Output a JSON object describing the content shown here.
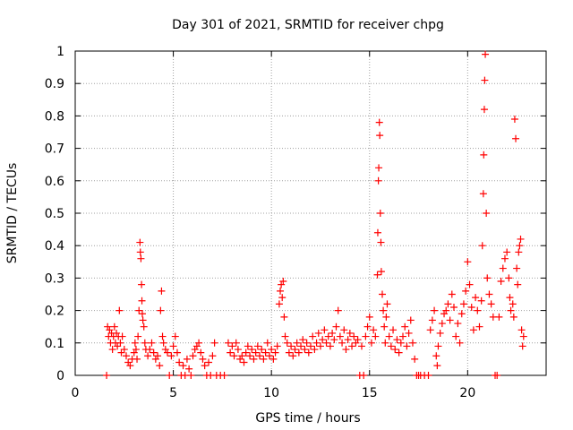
{
  "chart_data": {
    "type": "scatter",
    "title": "Day 301 of 2021, SRMTID for receiver chpg",
    "xlabel": "GPS time / hours",
    "ylabel": "SRMTID / TECUs",
    "xlim": [
      0,
      24
    ],
    "ylim": [
      0,
      1
    ],
    "xticks": [
      0,
      5,
      10,
      15,
      20
    ],
    "xtick_labels": [
      "0",
      "5",
      "10",
      "15",
      "20"
    ],
    "yticks": [
      0,
      0.1,
      0.2,
      0.3,
      0.4,
      0.5,
      0.6,
      0.7,
      0.8,
      0.9,
      1
    ],
    "ytick_labels": [
      "0",
      "0.1",
      "0.2",
      "0.3",
      "0.4",
      "0.5",
      "0.6",
      "0.7",
      "0.8",
      "0.9",
      "1"
    ],
    "grid": true,
    "marker": "+",
    "series": [
      {
        "name": "SRMTID",
        "color": "#ff0000",
        "points": [
          [
            1.6,
            0.0
          ],
          [
            1.65,
            0.15
          ],
          [
            1.7,
            0.12
          ],
          [
            1.75,
            0.14
          ],
          [
            1.8,
            0.1
          ],
          [
            1.85,
            0.13
          ],
          [
            1.9,
            0.08
          ],
          [
            1.95,
            0.12
          ],
          [
            2.0,
            0.15
          ],
          [
            2.05,
            0.1
          ],
          [
            2.1,
            0.13
          ],
          [
            2.15,
            0.09
          ],
          [
            2.2,
            0.12
          ],
          [
            2.25,
            0.2
          ],
          [
            2.3,
            0.1
          ],
          [
            2.35,
            0.07
          ],
          [
            2.4,
            0.12
          ],
          [
            2.5,
            0.08
          ],
          [
            2.6,
            0.06
          ],
          [
            2.7,
            0.04
          ],
          [
            2.8,
            0.03
          ],
          [
            2.9,
            0.05
          ],
          [
            3.0,
            0.07
          ],
          [
            3.05,
            0.1
          ],
          [
            3.1,
            0.08
          ],
          [
            3.15,
            0.05
          ],
          [
            3.2,
            0.12
          ],
          [
            3.25,
            0.2
          ],
          [
            3.3,
            0.41
          ],
          [
            3.32,
            0.38
          ],
          [
            3.35,
            0.36
          ],
          [
            3.38,
            0.28
          ],
          [
            3.4,
            0.23
          ],
          [
            3.42,
            0.19
          ],
          [
            3.45,
            0.17
          ],
          [
            3.5,
            0.15
          ],
          [
            3.55,
            0.1
          ],
          [
            3.6,
            0.08
          ],
          [
            3.7,
            0.06
          ],
          [
            3.8,
            0.08
          ],
          [
            3.9,
            0.1
          ],
          [
            4.0,
            0.07
          ],
          [
            4.1,
            0.05
          ],
          [
            4.2,
            0.06
          ],
          [
            4.3,
            0.03
          ],
          [
            4.35,
            0.2
          ],
          [
            4.4,
            0.26
          ],
          [
            4.45,
            0.12
          ],
          [
            4.5,
            0.1
          ],
          [
            4.6,
            0.08
          ],
          [
            4.7,
            0.07
          ],
          [
            4.8,
            0.0
          ],
          [
            4.9,
            0.06
          ],
          [
            5.0,
            0.09
          ],
          [
            5.1,
            0.12
          ],
          [
            5.2,
            0.07
          ],
          [
            5.3,
            0.04
          ],
          [
            5.4,
            0.0
          ],
          [
            5.5,
            0.03
          ],
          [
            5.6,
            0.0
          ],
          [
            5.7,
            0.05
          ],
          [
            5.8,
            0.02
          ],
          [
            5.9,
            0.0
          ],
          [
            6.0,
            0.06
          ],
          [
            6.1,
            0.08
          ],
          [
            6.2,
            0.09
          ],
          [
            6.3,
            0.1
          ],
          [
            6.4,
            0.07
          ],
          [
            6.5,
            0.05
          ],
          [
            6.6,
            0.03
          ],
          [
            6.7,
            0.0
          ],
          [
            6.8,
            0.04
          ],
          [
            6.9,
            0.0
          ],
          [
            7.0,
            0.06
          ],
          [
            7.1,
            0.1
          ],
          [
            7.2,
            0.0
          ],
          [
            7.4,
            0.0
          ],
          [
            7.6,
            0.0
          ],
          [
            7.8,
            0.1
          ],
          [
            7.9,
            0.07
          ],
          [
            8.0,
            0.09
          ],
          [
            8.1,
            0.06
          ],
          [
            8.2,
            0.1
          ],
          [
            8.3,
            0.08
          ],
          [
            8.4,
            0.05
          ],
          [
            8.5,
            0.06
          ],
          [
            8.6,
            0.04
          ],
          [
            8.7,
            0.07
          ],
          [
            8.8,
            0.09
          ],
          [
            8.9,
            0.06
          ],
          [
            9.0,
            0.08
          ],
          [
            9.1,
            0.05
          ],
          [
            9.2,
            0.07
          ],
          [
            9.3,
            0.09
          ],
          [
            9.4,
            0.06
          ],
          [
            9.5,
            0.08
          ],
          [
            9.6,
            0.05
          ],
          [
            9.7,
            0.07
          ],
          [
            9.8,
            0.1
          ],
          [
            9.9,
            0.06
          ],
          [
            10.0,
            0.08
          ],
          [
            10.1,
            0.05
          ],
          [
            10.2,
            0.07
          ],
          [
            10.3,
            0.09
          ],
          [
            10.4,
            0.22
          ],
          [
            10.45,
            0.26
          ],
          [
            10.5,
            0.28
          ],
          [
            10.55,
            0.24
          ],
          [
            10.6,
            0.29
          ],
          [
            10.65,
            0.18
          ],
          [
            10.7,
            0.12
          ],
          [
            10.8,
            0.1
          ],
          [
            10.9,
            0.07
          ],
          [
            11.0,
            0.09
          ],
          [
            11.1,
            0.06
          ],
          [
            11.2,
            0.08
          ],
          [
            11.3,
            0.1
          ],
          [
            11.4,
            0.07
          ],
          [
            11.5,
            0.09
          ],
          [
            11.6,
            0.11
          ],
          [
            11.7,
            0.08
          ],
          [
            11.8,
            0.1
          ],
          [
            11.9,
            0.07
          ],
          [
            12.0,
            0.09
          ],
          [
            12.1,
            0.12
          ],
          [
            12.2,
            0.08
          ],
          [
            12.3,
            0.1
          ],
          [
            12.4,
            0.13
          ],
          [
            12.5,
            0.09
          ],
          [
            12.6,
            0.11
          ],
          [
            12.7,
            0.14
          ],
          [
            12.8,
            0.1
          ],
          [
            12.9,
            0.12
          ],
          [
            13.0,
            0.09
          ],
          [
            13.1,
            0.13
          ],
          [
            13.2,
            0.11
          ],
          [
            13.3,
            0.15
          ],
          [
            13.4,
            0.2
          ],
          [
            13.5,
            0.12
          ],
          [
            13.6,
            0.1
          ],
          [
            13.7,
            0.14
          ],
          [
            13.8,
            0.08
          ],
          [
            13.9,
            0.11
          ],
          [
            14.0,
            0.13
          ],
          [
            14.1,
            0.09
          ],
          [
            14.2,
            0.12
          ],
          [
            14.3,
            0.1
          ],
          [
            14.4,
            0.11
          ],
          [
            14.5,
            0.0
          ],
          [
            14.6,
            0.09
          ],
          [
            14.7,
            0.0
          ],
          [
            14.8,
            0.12
          ],
          [
            14.9,
            0.15
          ],
          [
            15.0,
            0.18
          ],
          [
            15.1,
            0.1
          ],
          [
            15.2,
            0.14
          ],
          [
            15.3,
            0.12
          ],
          [
            15.4,
            0.31
          ],
          [
            15.42,
            0.44
          ],
          [
            15.45,
            0.6
          ],
          [
            15.47,
            0.64
          ],
          [
            15.5,
            0.78
          ],
          [
            15.52,
            0.74
          ],
          [
            15.55,
            0.5
          ],
          [
            15.58,
            0.41
          ],
          [
            15.6,
            0.32
          ],
          [
            15.65,
            0.25
          ],
          [
            15.7,
            0.2
          ],
          [
            15.75,
            0.15
          ],
          [
            15.8,
            0.1
          ],
          [
            15.85,
            0.18
          ],
          [
            15.9,
            0.22
          ],
          [
            16.0,
            0.12
          ],
          [
            16.1,
            0.09
          ],
          [
            16.2,
            0.14
          ],
          [
            16.3,
            0.08
          ],
          [
            16.4,
            0.11
          ],
          [
            16.5,
            0.07
          ],
          [
            16.6,
            0.1
          ],
          [
            16.7,
            0.12
          ],
          [
            16.8,
            0.15
          ],
          [
            16.9,
            0.09
          ],
          [
            17.0,
            0.13
          ],
          [
            17.1,
            0.17
          ],
          [
            17.2,
            0.1
          ],
          [
            17.3,
            0.05
          ],
          [
            17.4,
            0.0
          ],
          [
            17.5,
            0.0
          ],
          [
            17.6,
            0.0
          ],
          [
            17.8,
            0.0
          ],
          [
            18.0,
            0.0
          ],
          [
            18.1,
            0.14
          ],
          [
            18.2,
            0.17
          ],
          [
            18.3,
            0.2
          ],
          [
            18.4,
            0.06
          ],
          [
            18.45,
            0.03
          ],
          [
            18.5,
            0.09
          ],
          [
            18.6,
            0.13
          ],
          [
            18.7,
            0.16
          ],
          [
            18.8,
            0.19
          ],
          [
            18.9,
            0.2
          ],
          [
            19.0,
            0.22
          ],
          [
            19.1,
            0.17
          ],
          [
            19.2,
            0.25
          ],
          [
            19.3,
            0.21
          ],
          [
            19.4,
            0.12
          ],
          [
            19.5,
            0.16
          ],
          [
            19.6,
            0.1
          ],
          [
            19.7,
            0.19
          ],
          [
            19.8,
            0.22
          ],
          [
            19.9,
            0.26
          ],
          [
            20.0,
            0.35
          ],
          [
            20.1,
            0.28
          ],
          [
            20.2,
            0.21
          ],
          [
            20.3,
            0.14
          ],
          [
            20.4,
            0.24
          ],
          [
            20.5,
            0.2
          ],
          [
            20.6,
            0.15
          ],
          [
            20.7,
            0.23
          ],
          [
            20.75,
            0.4
          ],
          [
            20.8,
            0.56
          ],
          [
            20.82,
            0.68
          ],
          [
            20.85,
            0.82
          ],
          [
            20.87,
            0.91
          ],
          [
            20.9,
            0.99
          ],
          [
            20.95,
            0.5
          ],
          [
            21.0,
            0.3
          ],
          [
            21.1,
            0.25
          ],
          [
            21.2,
            0.22
          ],
          [
            21.3,
            0.18
          ],
          [
            21.4,
            0.0
          ],
          [
            21.5,
            0.0
          ],
          [
            21.6,
            0.18
          ],
          [
            21.7,
            0.29
          ],
          [
            21.8,
            0.33
          ],
          [
            21.9,
            0.36
          ],
          [
            22.0,
            0.38
          ],
          [
            22.1,
            0.3
          ],
          [
            22.15,
            0.24
          ],
          [
            22.2,
            0.2
          ],
          [
            22.3,
            0.22
          ],
          [
            22.35,
            0.18
          ],
          [
            22.4,
            0.79
          ],
          [
            22.45,
            0.73
          ],
          [
            22.5,
            0.33
          ],
          [
            22.55,
            0.28
          ],
          [
            22.6,
            0.38
          ],
          [
            22.65,
            0.4
          ],
          [
            22.7,
            0.42
          ],
          [
            22.75,
            0.14
          ],
          [
            22.8,
            0.09
          ],
          [
            22.85,
            0.12
          ]
        ]
      }
    ]
  }
}
